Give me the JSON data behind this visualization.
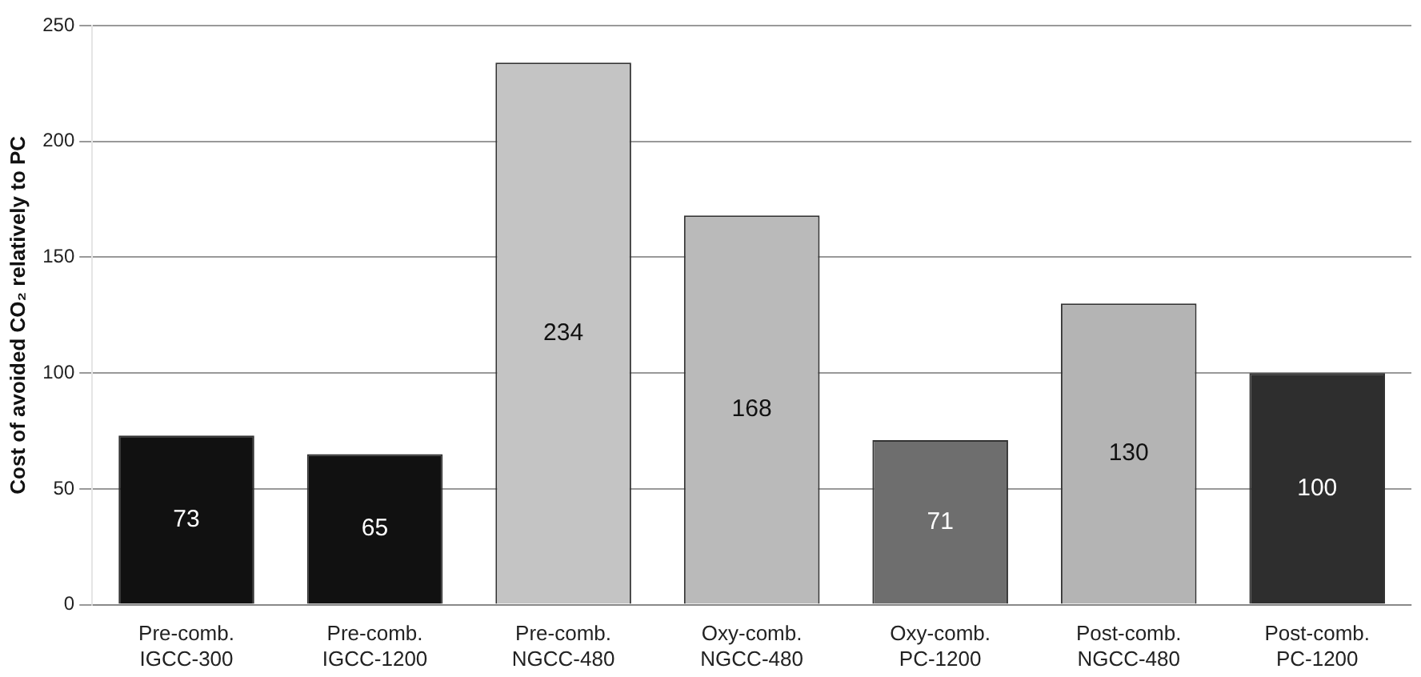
{
  "chart_data": {
    "type": "bar",
    "ylabel": "Cost of avoided CO₂ relatively to PC",
    "categories": [
      "Pre-comb.\nIGCC-300",
      "Pre-comb.\nIGCC-1200",
      "Pre-comb.\nNGCC-480",
      "Oxy-comb.\nNGCC-480",
      "Oxy-comb.\nPC-1200",
      "Post-comb.\nNGCC-480",
      "Post-comb.\nPC-1200"
    ],
    "values": [
      73,
      65,
      234,
      168,
      71,
      130,
      100
    ],
    "colors": [
      "#111111",
      "#111111",
      "#c4c4c4",
      "#bababa",
      "#6e6e6e",
      "#b4b4b4",
      "#2e2e2e"
    ],
    "ylim": [
      0,
      250
    ],
    "yticks": [
      0,
      50,
      100,
      150,
      200,
      250
    ],
    "grid": "y",
    "data_labels": true,
    "legend": false
  }
}
